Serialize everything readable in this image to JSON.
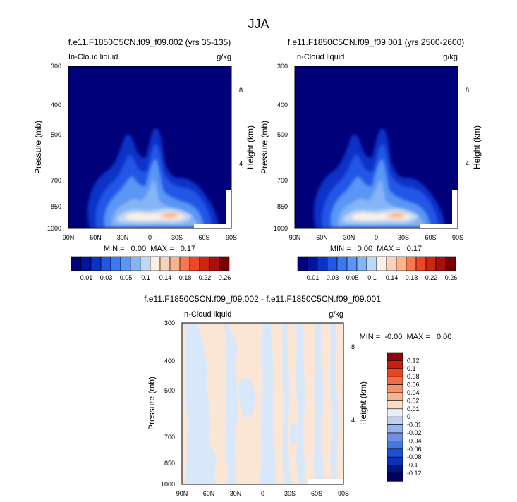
{
  "figure": {
    "title": "JJA"
  },
  "chart_data": [
    {
      "type": "heatmap",
      "title": "f.e11.F1850C5CN.f09_f09.002 (yrs 35-135)",
      "left_label": "In-Cloud liquid",
      "units": "g/kg",
      "ylabel": "Pressure (mb)",
      "ylabel_right": "Height (km)",
      "x_ticks": [
        "90N",
        "60N",
        "30N",
        "0",
        "30S",
        "60S",
        "90S"
      ],
      "y_ticks": [
        "300",
        "400",
        "500",
        "700",
        "850",
        "1000"
      ],
      "y_ticks_right": [
        "8",
        "4"
      ],
      "ylim": [
        1000,
        300
      ],
      "stats": "MIN =   0.00  MAX =   0.17",
      "colorbar_labels": [
        "0.01",
        "0.03",
        "0.05",
        "0.1",
        "0.14",
        "0.18",
        "0.22",
        "0.26"
      ]
    },
    {
      "type": "heatmap",
      "title": "f.e11.F1850C5CN.f09_f09.001 (yrs 2500-2600)",
      "left_label": "In-Cloud liquid",
      "units": "g/kg",
      "ylabel": "Pressure (mb)",
      "ylabel_right": "Height (km)",
      "x_ticks": [
        "90N",
        "60N",
        "30N",
        "0",
        "30S",
        "60S",
        "90S"
      ],
      "y_ticks": [
        "300",
        "400",
        "500",
        "700",
        "850",
        "1000"
      ],
      "y_ticks_right": [
        "8",
        "4"
      ],
      "ylim": [
        1000,
        300
      ],
      "stats": "MIN =   0.00  MAX =   0.17",
      "colorbar_labels": [
        "0.01",
        "0.03",
        "0.05",
        "0.1",
        "0.14",
        "0.18",
        "0.22",
        "0.26"
      ]
    },
    {
      "type": "heatmap",
      "title": "f.e11.F1850C5CN.f09_f09.002 - f.e11.F1850C5CN.f09_f09.001",
      "left_label": "In-Cloud liquid",
      "units": "g/kg",
      "ylabel": "Pressure (mb)",
      "ylabel_right": "Height (km)",
      "x_ticks": [
        "90N",
        "60N",
        "30N",
        "0",
        "30S",
        "60S",
        "90S"
      ],
      "y_ticks": [
        "300",
        "400",
        "500",
        "700",
        "850",
        "1000"
      ],
      "y_ticks_right": [
        "8",
        "4"
      ],
      "ylim": [
        1000,
        300
      ],
      "stats": "MIN =  -0.00  MAX =   0.00",
      "colorbar_labels": [
        "0.12",
        "0.1",
        "0.08",
        "0.06",
        "0.04",
        "0.02",
        "0.01",
        "0",
        "-0.01",
        "-0.02",
        "-0.04",
        "-0.06",
        "-0.08",
        "-0.1",
        "-0.12"
      ]
    }
  ],
  "colors": {
    "abs_scale": [
      "#00007a",
      "#0014a0",
      "#0a32c8",
      "#2356e6",
      "#3c78f0",
      "#5a96f5",
      "#87b4f5",
      "#bed7f5",
      "#faf0e6",
      "#fad2b9",
      "#fab48c",
      "#fa7850",
      "#f04628",
      "#d2230f",
      "#aa0f0a",
      "#780000"
    ],
    "diff_scale": [
      "#96000a",
      "#c81e0f",
      "#e6461e",
      "#f06e46",
      "#f59164",
      "#f5b496",
      "#fadcc3",
      "#e6f0fa",
      "#bed2f0",
      "#96b4eb",
      "#6e91e6",
      "#4678e1",
      "#1e50d7",
      "#0a32b4",
      "#001482",
      "#000064"
    ]
  }
}
